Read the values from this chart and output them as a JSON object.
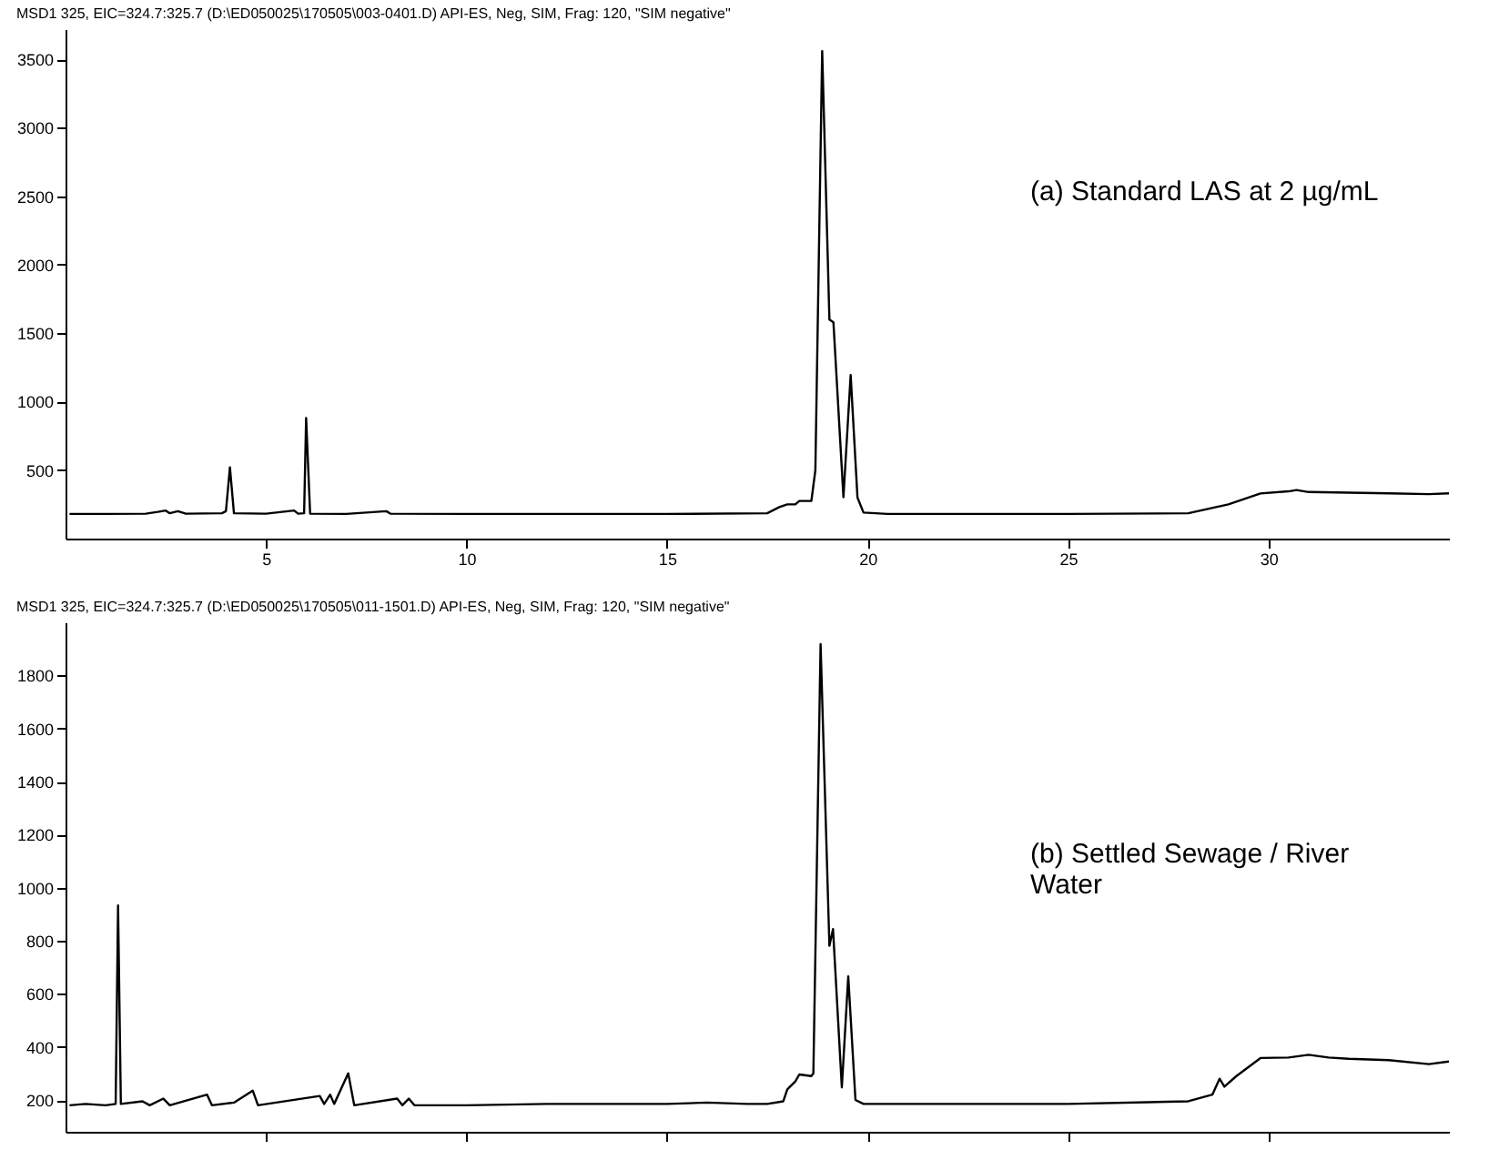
{
  "chart_data": [
    {
      "type": "line",
      "title": "MSD1 325, EIC=324.7:325.7 (D:\\ED050025\\170505\\003-0401.D)    API-ES, Neg, SIM, Frag: 120, \"SIM negative\"",
      "annotations": [
        "(a) Standard LAS at 2 µg/mL"
      ],
      "xlim": [
        0,
        34.5
      ],
      "xticks": [
        5,
        10,
        15,
        20,
        25,
        30
      ],
      "ylim": [
        0,
        3720
      ],
      "yticks": [
        500,
        1000,
        1500,
        2000,
        2500,
        3000,
        3500
      ],
      "grid": false,
      "marker": "none",
      "line_style": "solid",
      "series": [
        {
          "color": "#000000",
          "x": [
            0.1,
            1,
            2,
            2.3,
            2.5,
            2.6,
            2.8,
            3,
            3.9,
            4.0,
            4.1,
            4.2,
            5,
            5.7,
            5.8,
            5.95,
            6.0,
            6.1,
            7,
            8,
            8.1,
            10,
            15,
            17.5,
            17.8,
            18.0,
            18.2,
            18.3,
            18.6,
            18.7,
            18.87,
            19.05,
            19.15,
            19.4,
            19.58,
            19.75,
            19.9,
            20.5,
            25,
            28,
            29,
            29.8,
            30.5,
            30.7,
            31,
            32,
            33,
            34,
            34.5
          ],
          "values": [
            180,
            180,
            182,
            195,
            205,
            185,
            200,
            182,
            185,
            200,
            520,
            185,
            182,
            205,
            182,
            185,
            880,
            182,
            180,
            200,
            182,
            180,
            180,
            185,
            230,
            250,
            250,
            275,
            275,
            500,
            3560,
            1600,
            1580,
            302,
            1195,
            300,
            190,
            180,
            180,
            185,
            250,
            330,
            345,
            355,
            340,
            335,
            330,
            325,
            330
          ]
        }
      ]
    },
    {
      "type": "line",
      "title": "MSD1 325, EIC=324.7:325.7 (D:\\ED050025\\170505\\011-1501.D)    API-ES, Neg, SIM, Frag: 120, \"SIM negative\"",
      "annotations": [
        "(b) Settled Sewage / River Water"
      ],
      "xlim": [
        0,
        34.5
      ],
      "xticks": [
        5,
        10,
        15,
        20,
        25,
        30
      ],
      "ylim": [
        80,
        2000
      ],
      "yticks": [
        200,
        400,
        600,
        800,
        1000,
        1200,
        1400,
        1600,
        1800
      ],
      "grid": false,
      "marker": "none",
      "line_style": "solid",
      "tick_labels": "y",
      "series": [
        {
          "color": "#000000",
          "x": [
            0.1,
            0.5,
            1,
            1.25,
            1.31,
            1.38,
            1.92,
            2.1,
            2.44,
            2.6,
            3.53,
            3.65,
            4.2,
            4.67,
            4.8,
            6.34,
            6.45,
            6.6,
            6.7,
            7.05,
            7.2,
            8.27,
            8.4,
            8.56,
            8.7,
            10,
            12,
            15,
            16,
            17,
            17.5,
            17.9,
            18.0,
            18.2,
            18.3,
            18.6,
            18.65,
            18.83,
            19.05,
            19.14,
            19.36,
            19.52,
            19.7,
            19.9,
            25,
            28,
            28.6,
            28.78,
            28.9,
            29.2,
            29.8,
            30.5,
            31,
            31.5,
            32,
            33,
            34,
            34.5
          ],
          "values": [
            180,
            185,
            180,
            185,
            933,
            185,
            195,
            180,
            205,
            180,
            220,
            180,
            190,
            235,
            180,
            215,
            185,
            220,
            185,
            300,
            180,
            205,
            180,
            205,
            180,
            180,
            185,
            185,
            190,
            185,
            185,
            195,
            240,
            270,
            296,
            290,
            300,
            1918,
            781,
            844,
            247,
            666,
            200,
            185,
            185,
            195,
            220,
            280,
            250,
            290,
            358,
            360,
            370,
            360,
            355,
            350,
            335,
            345
          ]
        }
      ]
    }
  ]
}
